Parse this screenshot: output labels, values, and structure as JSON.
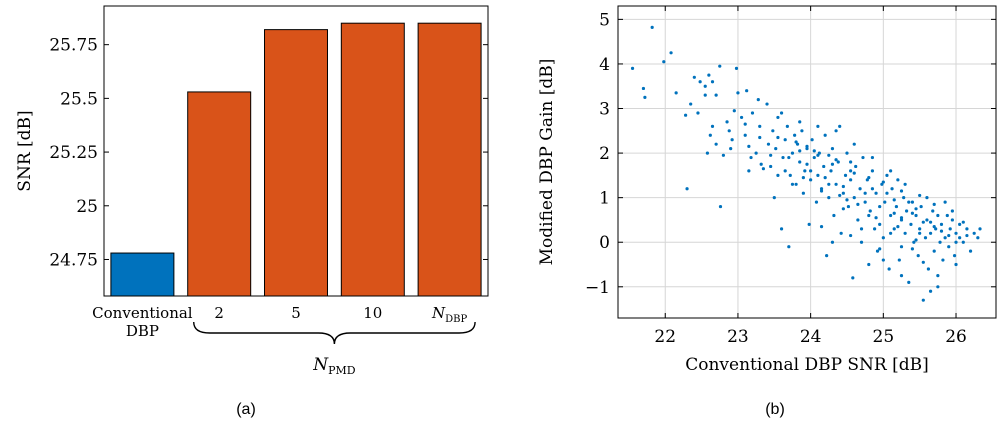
{
  "panels": {
    "a_caption": "(a)",
    "b_caption": "(b)"
  },
  "chart_data": [
    {
      "type": "bar",
      "title": "",
      "xlabel": "",
      "ylabel": "SNR [dB]",
      "ylim": [
        24.58,
        25.93
      ],
      "yticks": [
        "24.75",
        "25",
        "25.25",
        "25.5",
        "25.75"
      ],
      "ytick_values": [
        24.75,
        25.0,
        25.25,
        25.5,
        25.75
      ],
      "categories": [
        "Conventional DBP",
        "2",
        "5",
        "10",
        "N_DBP"
      ],
      "category_labels": [
        {
          "line1": "Conventional",
          "line2": "DBP"
        },
        {
          "line1": "2"
        },
        {
          "line1": "5"
        },
        {
          "line1": "10"
        },
        {
          "main": "N",
          "sub": "DBP"
        }
      ],
      "values": [
        24.78,
        25.53,
        25.82,
        25.85,
        25.85
      ],
      "colors": [
        "#0072BD",
        "#D95319",
        "#D95319",
        "#D95319",
        "#D95319"
      ],
      "group_brace_label": {
        "main": "N",
        "sub": "PMD"
      },
      "grid": false
    },
    {
      "type": "scatter",
      "title": "",
      "xlabel": "Conventional DBP SNR [dB]",
      "ylabel": "Modified DBP Gain [dB]",
      "xlim": [
        21.35,
        26.55
      ],
      "ylim": [
        -1.7,
        5.3
      ],
      "xticks": [
        "22",
        "23",
        "24",
        "25",
        "26"
      ],
      "xtick_values": [
        22,
        23,
        24,
        25,
        26
      ],
      "yticks": [
        "−1",
        "0",
        "1",
        "2",
        "3",
        "4",
        "5"
      ],
      "ytick_values": [
        -1,
        0,
        1,
        2,
        3,
        4,
        5
      ],
      "grid": true,
      "color": "#0072BD",
      "points": [
        [
          21.55,
          3.9
        ],
        [
          21.82,
          4.82
        ],
        [
          21.98,
          4.05
        ],
        [
          22.08,
          4.25
        ],
        [
          21.7,
          3.45
        ],
        [
          21.72,
          3.25
        ],
        [
          22.15,
          3.35
        ],
        [
          22.28,
          2.85
        ],
        [
          22.3,
          1.2
        ],
        [
          22.35,
          3.1
        ],
        [
          22.45,
          2.9
        ],
        [
          22.48,
          3.6
        ],
        [
          22.55,
          3.3
        ],
        [
          22.58,
          2.0
        ],
        [
          22.6,
          3.75
        ],
        [
          22.62,
          2.4
        ],
        [
          22.65,
          3.6
        ],
        [
          22.7,
          2.2
        ],
        [
          22.75,
          3.95
        ],
        [
          22.76,
          0.8
        ],
        [
          22.8,
          1.95
        ],
        [
          22.85,
          2.7
        ],
        [
          22.88,
          2.5
        ],
        [
          22.92,
          2.3
        ],
        [
          22.98,
          3.9
        ],
        [
          23.0,
          3.35
        ],
        [
          23.05,
          2.8
        ],
        [
          23.1,
          2.4
        ],
        [
          23.12,
          3.4
        ],
        [
          23.15,
          1.6
        ],
        [
          23.18,
          1.9
        ],
        [
          23.2,
          2.9
        ],
        [
          23.25,
          2.0
        ],
        [
          23.28,
          3.2
        ],
        [
          23.3,
          2.6
        ],
        [
          23.32,
          1.75
        ],
        [
          23.4,
          3.1
        ],
        [
          23.42,
          2.2
        ],
        [
          23.45,
          1.7
        ],
        [
          23.48,
          2.5
        ],
        [
          23.5,
          1.0
        ],
        [
          23.52,
          2.1
        ],
        [
          23.55,
          2.8
        ],
        [
          23.6,
          0.3
        ],
        [
          23.62,
          1.9
        ],
        [
          23.65,
          2.3
        ],
        [
          23.68,
          2.6
        ],
        [
          23.7,
          -0.1
        ],
        [
          23.72,
          1.5
        ],
        [
          23.75,
          2.0
        ],
        [
          23.78,
          2.4
        ],
        [
          23.8,
          1.3
        ],
        [
          23.82,
          2.2
        ],
        [
          23.85,
          1.8
        ],
        [
          23.88,
          2.5
        ],
        [
          23.9,
          1.1
        ],
        [
          23.92,
          1.6
        ],
        [
          23.95,
          2.1
        ],
        [
          23.98,
          0.4
        ],
        [
          24.0,
          1.4
        ],
        [
          24.02,
          2.3
        ],
        [
          24.05,
          1.9
        ],
        [
          24.08,
          0.9
        ],
        [
          24.1,
          1.5
        ],
        [
          24.12,
          2.0
        ],
        [
          24.15,
          1.2
        ],
        [
          24.18,
          1.7
        ],
        [
          24.2,
          2.4
        ],
        [
          24.22,
          -0.3
        ],
        [
          24.25,
          1.0
        ],
        [
          24.28,
          1.6
        ],
        [
          24.3,
          2.1
        ],
        [
          24.32,
          0.6
        ],
        [
          24.35,
          1.3
        ],
        [
          24.38,
          1.8
        ],
        [
          24.4,
          2.6
        ],
        [
          24.42,
          0.2
        ],
        [
          24.45,
          1.1
        ],
        [
          24.48,
          1.5
        ],
        [
          24.5,
          2.0
        ],
        [
          24.52,
          0.8
        ],
        [
          24.55,
          1.4
        ],
        [
          24.58,
          -0.8
        ],
        [
          24.6,
          1.0
        ],
        [
          24.62,
          1.7
        ],
        [
          24.65,
          0.5
        ],
        [
          24.68,
          1.2
        ],
        [
          24.7,
          0.0
        ],
        [
          24.72,
          1.9
        ],
        [
          24.75,
          0.9
        ],
        [
          24.78,
          1.4
        ],
        [
          24.8,
          -0.5
        ],
        [
          24.82,
          0.7
        ],
        [
          24.85,
          1.6
        ],
        [
          24.88,
          0.3
        ],
        [
          24.9,
          1.1
        ],
        [
          24.92,
          -0.2
        ],
        [
          24.95,
          0.8
        ],
        [
          24.98,
          1.3
        ],
        [
          25.0,
          0.1
        ],
        [
          25.02,
          0.9
        ],
        [
          25.05,
          1.5
        ],
        [
          25.08,
          -0.6
        ],
        [
          25.1,
          0.6
        ],
        [
          25.12,
          1.2
        ],
        [
          25.15,
          0.3
        ],
        [
          25.18,
          0.8
        ],
        [
          25.2,
          1.4
        ],
        [
          25.22,
          -0.4
        ],
        [
          25.25,
          0.5
        ],
        [
          25.28,
          1.0
        ],
        [
          25.3,
          0.2
        ],
        [
          25.32,
          0.7
        ],
        [
          25.35,
          -0.9
        ],
        [
          25.38,
          0.4
        ],
        [
          25.4,
          0.9
        ],
        [
          25.42,
          0.0
        ],
        [
          25.45,
          0.6
        ],
        [
          25.48,
          -0.3
        ],
        [
          25.5,
          0.3
        ],
        [
          25.52,
          0.8
        ],
        [
          25.55,
          -1.3
        ],
        [
          25.58,
          0.1
        ],
        [
          25.6,
          0.5
        ],
        [
          25.62,
          -0.6
        ],
        [
          25.65,
          0.2
        ],
        [
          25.68,
          0.7
        ],
        [
          25.7,
          -0.2
        ],
        [
          25.72,
          0.3
        ],
        [
          25.75,
          -1.0
        ],
        [
          25.78,
          0.0
        ],
        [
          25.8,
          0.4
        ],
        [
          25.82,
          -0.4
        ],
        [
          25.85,
          0.1
        ],
        [
          25.88,
          0.6
        ],
        [
          25.9,
          -0.1
        ],
        [
          25.92,
          0.3
        ],
        [
          25.95,
          0.5
        ],
        [
          25.98,
          -0.3
        ],
        [
          26.0,
          0.2
        ],
        [
          26.05,
          0.4
        ],
        [
          26.1,
          0.0
        ],
        [
          26.15,
          0.3
        ],
        [
          26.2,
          -0.2
        ],
        [
          26.25,
          0.2
        ],
        [
          26.3,
          0.1
        ],
        [
          26.33,
          0.3
        ],
        [
          26.1,
          0.45
        ],
        [
          25.85,
          0.9
        ],
        [
          25.6,
          1.0
        ],
        [
          25.3,
          1.3
        ],
        [
          25.1,
          1.6
        ],
        [
          24.85,
          1.9
        ],
        [
          24.6,
          2.2
        ],
        [
          24.35,
          2.5
        ],
        [
          24.1,
          2.6
        ],
        [
          23.85,
          2.7
        ],
        [
          23.6,
          2.9
        ],
        [
          23.95,
          2.15
        ],
        [
          24.25,
          1.95
        ],
        [
          24.55,
          1.8
        ],
        [
          24.85,
          1.2
        ],
        [
          25.15,
          0.95
        ],
        [
          25.45,
          0.75
        ],
        [
          25.75,
          0.6
        ],
        [
          26.05,
          0.1
        ],
        [
          24.45,
          0.75
        ],
        [
          24.15,
          0.35
        ],
        [
          24.7,
          0.3
        ],
        [
          25.0,
          -0.4
        ],
        [
          25.25,
          -0.1
        ],
        [
          25.5,
          0.2
        ],
        [
          25.35,
          0.9
        ],
        [
          25.05,
          1.1
        ],
        [
          24.75,
          1.1
        ],
        [
          24.45,
          1.25
        ],
        [
          24.2,
          1.45
        ],
        [
          23.95,
          1.75
        ],
        [
          23.7,
          1.9
        ],
        [
          23.55,
          2.35
        ],
        [
          23.3,
          2.35
        ],
        [
          23.1,
          2.65
        ],
        [
          22.95,
          2.95
        ],
        [
          22.7,
          3.3
        ],
        [
          22.55,
          3.5
        ],
        [
          22.4,
          3.7
        ],
        [
          24.9,
          0.55
        ],
        [
          25.2,
          0.35
        ],
        [
          25.45,
          0.05
        ],
        [
          25.7,
          0.35
        ],
        [
          26.0,
          0.0
        ],
        [
          25.9,
          0.15
        ],
        [
          25.65,
          0.45
        ],
        [
          25.4,
          0.65
        ],
        [
          25.15,
          0.65
        ],
        [
          24.95,
          0.4
        ],
        [
          24.65,
          0.85
        ],
        [
          24.4,
          1.05
        ],
        [
          24.15,
          1.15
        ],
        [
          23.9,
          1.45
        ],
        [
          23.65,
          1.6
        ],
        [
          23.45,
          1.95
        ],
        [
          24.6,
          1.55
        ],
        [
          24.3,
          1.75
        ],
        [
          24.05,
          2.05
        ],
        [
          23.8,
          2.25
        ],
        [
          25.25,
          0.55
        ],
        [
          25.55,
          0.45
        ],
        [
          25.8,
          0.25
        ],
        [
          26.15,
          0.15
        ],
        [
          25.55,
          -0.45
        ],
        [
          25.25,
          -0.75
        ],
        [
          24.95,
          -0.15
        ],
        [
          24.55,
          0.15
        ],
        [
          24.3,
          0.0
        ],
        [
          25.75,
          -0.75
        ],
        [
          25.65,
          -1.1
        ],
        [
          26.0,
          -0.5
        ],
        [
          25.4,
          -0.15
        ],
        [
          25.1,
          0.2
        ],
        [
          24.8,
          0.6
        ],
        [
          24.5,
          0.95
        ],
        [
          24.25,
          1.3
        ],
        [
          24.0,
          1.6
        ],
        [
          23.75,
          1.3
        ],
        [
          23.55,
          1.5
        ],
        [
          23.35,
          1.65
        ],
        [
          23.15,
          2.15
        ],
        [
          22.9,
          2.1
        ],
        [
          22.65,
          2.6
        ],
        [
          25.95,
          0.7
        ],
        [
          25.7,
          0.85
        ],
        [
          25.5,
          1.05
        ],
        [
          25.25,
          1.15
        ],
        [
          25.0,
          1.35
        ],
        [
          24.8,
          1.45
        ],
        [
          24.55,
          1.6
        ],
        [
          24.35,
          1.85
        ],
        [
          24.1,
          1.95
        ],
        [
          23.85,
          2.05
        ]
      ]
    }
  ]
}
